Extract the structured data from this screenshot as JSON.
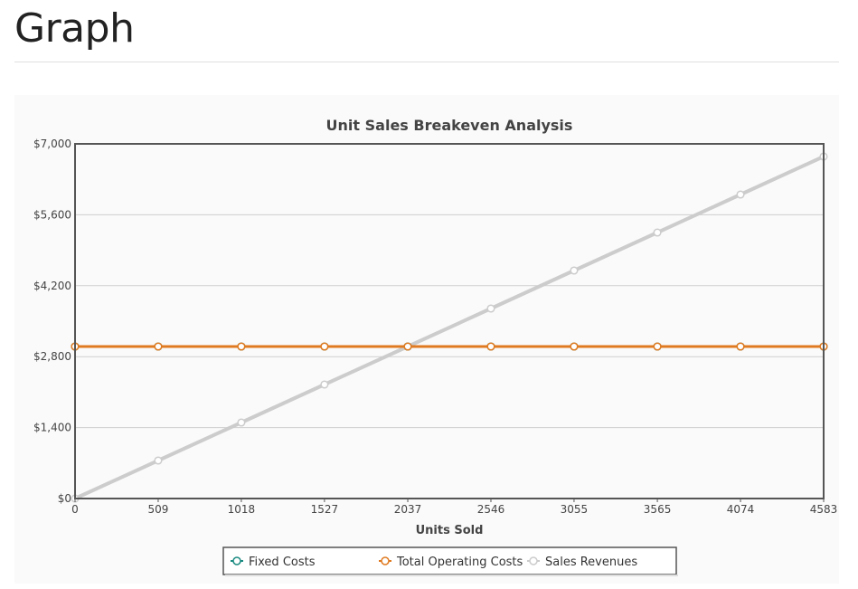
{
  "page": {
    "title": "Graph"
  },
  "chart_data": {
    "type": "line",
    "title": "Unit Sales Breakeven Analysis",
    "xlabel": "Units Sold",
    "ylabel": "",
    "x": [
      0,
      509,
      1018,
      1527,
      2037,
      2546,
      3055,
      3565,
      4074,
      4583
    ],
    "x_tick_labels": [
      "0",
      "509",
      "1018",
      "1527",
      "2037",
      "2546",
      "3055",
      "3565",
      "4074",
      "4583"
    ],
    "ylim": [
      0,
      7000
    ],
    "y_ticks": [
      0,
      1400,
      2800,
      4200,
      5600,
      7000
    ],
    "y_tick_labels": [
      "$0",
      "$1,400",
      "$2,800",
      "$4,200",
      "$5,600",
      "$7,000"
    ],
    "grid": "horizontal",
    "legend_position": "bottom",
    "series": [
      {
        "name": "Fixed Costs",
        "color": "#1a8a80",
        "values": [
          3000,
          3000,
          3000,
          3000,
          3000,
          3000,
          3000,
          3000,
          3000,
          3000
        ]
      },
      {
        "name": "Total Operating Costs",
        "color": "#e07a20",
        "values": [
          3000,
          3000,
          3000,
          3000,
          3000,
          3000,
          3000,
          3000,
          3000,
          3000
        ]
      },
      {
        "name": "Sales Revenues",
        "color": "#cccccc",
        "values": [
          0,
          750,
          1500,
          2250,
          3000,
          3750,
          4500,
          5250,
          6000,
          6750
        ]
      }
    ]
  }
}
